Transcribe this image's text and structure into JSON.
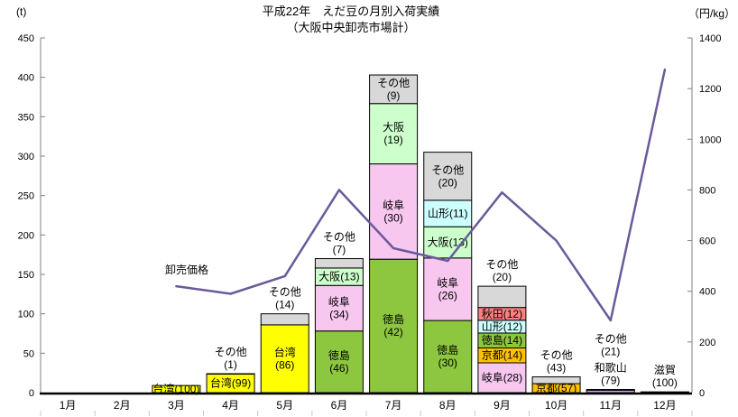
{
  "chart_data": {
    "type": "bar",
    "subtype": "stacked-bar-with-line",
    "title": "平成22年　えだ豆の月別入荷実績",
    "subtitle": "（大阪中央卸売市場計）",
    "left_axis": {
      "unit": "(t)",
      "min": 0,
      "max": 450,
      "step": 50
    },
    "right_axis": {
      "unit": "（円/kg）",
      "min": 0,
      "max": 1400,
      "step": 200
    },
    "categories": [
      "1月",
      "2月",
      "3月",
      "4月",
      "5月",
      "6月",
      "7月",
      "8月",
      "9月",
      "10月",
      "11月",
      "12月"
    ],
    "colors": {
      "taiwan": "#FFFF00",
      "tokushima": "#8DC73F",
      "gifu": "#F7C7EF",
      "osaka": "#CCFFCC",
      "yamagata": "#CCFFFF",
      "kyoto": "#FFC000",
      "akita": "#FF8080",
      "wakayama": "#C5A3E0",
      "shiga": "#CCFFCC",
      "sonota": "#D8D8D8"
    },
    "bars": [
      {
        "month": "1月",
        "total_t": 0,
        "segments": []
      },
      {
        "month": "2月",
        "total_t": 0,
        "segments": []
      },
      {
        "month": "3月",
        "total_t": 9,
        "segments": [
          {
            "name": "台湾",
            "pct": 100,
            "color_key": "taiwan",
            "label_lines": [
              "台湾(100)"
            ],
            "label_pos": "inside"
          }
        ]
      },
      {
        "month": "4月",
        "total_t": 24,
        "segments": [
          {
            "name": "台湾",
            "pct": 99,
            "color_key": "taiwan",
            "label_lines": [
              "台湾(99)"
            ],
            "label_pos": "inside"
          },
          {
            "name": "その他",
            "pct": 1,
            "color_key": "sonota",
            "label_lines": [
              "その他",
              "(1)"
            ],
            "label_pos": "above"
          }
        ]
      },
      {
        "month": "5月",
        "total_t": 100,
        "segments": [
          {
            "name": "台湾",
            "pct": 86,
            "color_key": "taiwan",
            "label_lines": [
              "台湾",
              "(86)"
            ],
            "label_pos": "inside"
          },
          {
            "name": "その他",
            "pct": 14,
            "color_key": "sonota",
            "label_lines": [
              "その他",
              "(14)"
            ],
            "label_pos": "above"
          }
        ]
      },
      {
        "month": "6月",
        "total_t": 170,
        "segments": [
          {
            "name": "徳島",
            "pct": 46,
            "color_key": "tokushima",
            "label_lines": [
              "徳島",
              "(46)"
            ],
            "label_pos": "inside"
          },
          {
            "name": "岐阜",
            "pct": 34,
            "color_key": "gifu",
            "label_lines": [
              "岐阜",
              "(34)"
            ],
            "label_pos": "inside"
          },
          {
            "name": "大阪",
            "pct": 13,
            "color_key": "osaka",
            "label_lines": [
              "大阪(13)"
            ],
            "label_pos": "inside"
          },
          {
            "name": "その他",
            "pct": 7,
            "color_key": "sonota",
            "label_lines": [
              "その他",
              "(7)"
            ],
            "label_pos": "above"
          }
        ]
      },
      {
        "month": "7月",
        "total_t": 403,
        "segments": [
          {
            "name": "徳島",
            "pct": 42,
            "color_key": "tokushima",
            "label_lines": [
              "徳島",
              "(42)"
            ],
            "label_pos": "inside"
          },
          {
            "name": "岐阜",
            "pct": 30,
            "color_key": "gifu",
            "label_lines": [
              "岐阜",
              "(30)"
            ],
            "label_pos": "inside"
          },
          {
            "name": "大阪",
            "pct": 19,
            "color_key": "osaka",
            "label_lines": [
              "大阪",
              "(19)"
            ],
            "label_pos": "inside"
          },
          {
            "name": "その他",
            "pct": 9,
            "color_key": "sonota",
            "label_lines": [
              "その他",
              "(9)"
            ],
            "label_pos": "inside"
          }
        ]
      },
      {
        "month": "8月",
        "total_t": 305,
        "segments": [
          {
            "name": "徳島",
            "pct": 30,
            "color_key": "tokushima",
            "label_lines": [
              "徳島",
              "(30)"
            ],
            "label_pos": "inside"
          },
          {
            "name": "岐阜",
            "pct": 26,
            "color_key": "gifu",
            "label_lines": [
              "岐阜",
              "(26)"
            ],
            "label_pos": "inside"
          },
          {
            "name": "大阪",
            "pct": 13,
            "color_key": "osaka",
            "label_lines": [
              "大阪(13)"
            ],
            "label_pos": "inside"
          },
          {
            "name": "山形",
            "pct": 11,
            "color_key": "yamagata",
            "label_lines": [
              "山形(11)"
            ],
            "label_pos": "inside"
          },
          {
            "name": "その他",
            "pct": 20,
            "color_key": "sonota",
            "label_lines": [
              "その他",
              "(20)"
            ],
            "label_pos": "inside"
          }
        ]
      },
      {
        "month": "9月",
        "total_t": 135,
        "segments": [
          {
            "name": "岐阜",
            "pct": 28,
            "color_key": "gifu",
            "label_lines": [
              "岐阜(28)"
            ],
            "label_pos": "inside"
          },
          {
            "name": "京都",
            "pct": 14,
            "color_key": "kyoto",
            "label_lines": [
              "京都(14)"
            ],
            "label_pos": "inside"
          },
          {
            "name": "徳島",
            "pct": 14,
            "color_key": "tokushima",
            "label_lines": [
              "徳島(14)"
            ],
            "label_pos": "inside"
          },
          {
            "name": "山形",
            "pct": 12,
            "color_key": "yamagata",
            "label_lines": [
              "山形(12)"
            ],
            "label_pos": "inside"
          },
          {
            "name": "秋田",
            "pct": 12,
            "color_key": "akita",
            "label_lines": [
              "秋田(12)"
            ],
            "label_pos": "inside"
          },
          {
            "name": "その他",
            "pct": 20,
            "color_key": "sonota",
            "label_lines": [
              "その他",
              "(20)"
            ],
            "label_pos": "above"
          }
        ]
      },
      {
        "month": "10月",
        "total_t": 20,
        "segments": [
          {
            "name": "京都",
            "pct": 57,
            "color_key": "kyoto",
            "label_lines": [
              "京都(57)"
            ],
            "label_pos": "inside"
          },
          {
            "name": "その他",
            "pct": 43,
            "color_key": "sonota",
            "label_lines": [
              "その他",
              "(43)"
            ],
            "label_pos": "above"
          }
        ]
      },
      {
        "month": "11月",
        "total_t": 4,
        "segments": [
          {
            "name": "和歌山",
            "pct": 79,
            "color_key": "wakayama",
            "label_lines": [
              "和歌山",
              "(79)"
            ],
            "label_pos": "above"
          },
          {
            "name": "その他",
            "pct": 21,
            "color_key": "sonota",
            "label_lines": [
              "その他",
              "(21)"
            ],
            "label_pos": "above"
          }
        ]
      },
      {
        "month": "12月",
        "total_t": 1,
        "segments": [
          {
            "name": "滋賀",
            "pct": 100,
            "color_key": "shiga",
            "label_lines": [
              "滋賀",
              "(100)"
            ],
            "label_pos": "above"
          }
        ]
      }
    ],
    "line": {
      "label": "卸売価格",
      "color": "#6A5A9B",
      "unit": "円/kg",
      "values": [
        null,
        null,
        420,
        390,
        460,
        800,
        570,
        520,
        790,
        600,
        285,
        1275
      ]
    }
  }
}
